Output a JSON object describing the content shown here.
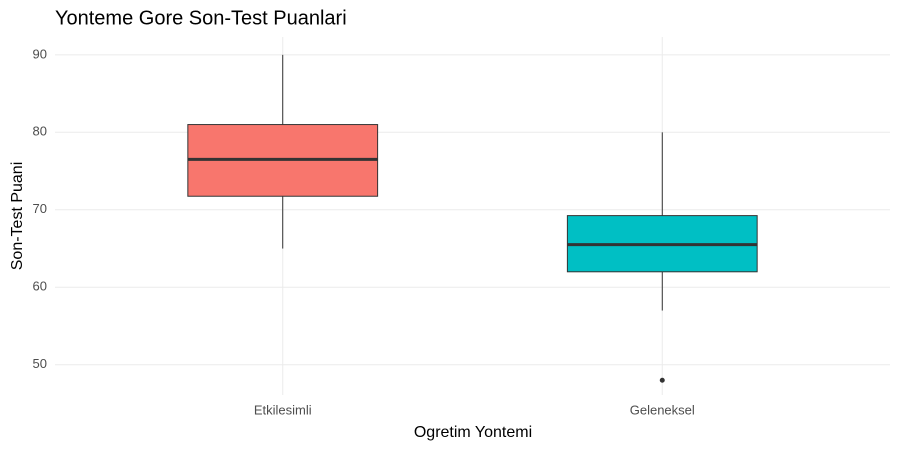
{
  "chart_data": {
    "type": "boxplot",
    "title": "Yonteme Gore Son-Test Puanlari",
    "x_label": "Ogretim Yontemi",
    "y_label": "Son-Test Puani",
    "categories": [
      "Etkilesimli",
      "Geleneksel"
    ],
    "boxes": [
      {
        "color": "#f8766d",
        "whisker_low": 65,
        "q1": 71.75,
        "median": 76.5,
        "q3": 81,
        "whisker_high": 90,
        "outliers": []
      },
      {
        "color": "#00bfc4",
        "whisker_low": 57,
        "q1": 62,
        "median": 65.5,
        "q3": 69.25,
        "whisker_high": 80,
        "outliers": [
          48
        ]
      }
    ],
    "ylim": [
      46.1,
      92.3
    ],
    "yticks": [
      50,
      60,
      70,
      80,
      90
    ],
    "grid": true
  }
}
